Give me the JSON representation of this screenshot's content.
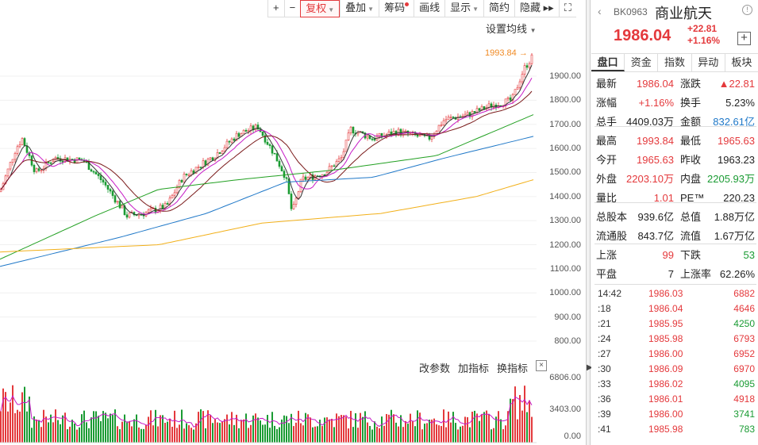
{
  "toolbar": [
    {
      "label": "+",
      "name": "zoom-in-button"
    },
    {
      "label": "−",
      "name": "zoom-out-button"
    },
    {
      "label": "复权",
      "name": "adjust-button",
      "caret": true,
      "active": true
    },
    {
      "label": "叠加",
      "name": "overlay-button",
      "caret": true
    },
    {
      "label": "筹码",
      "name": "chips-button",
      "dot": true
    },
    {
      "label": "画线",
      "name": "draw-line-button"
    },
    {
      "label": "显示",
      "name": "display-button",
      "caret": true
    },
    {
      "label": "简约",
      "name": "simple-button"
    },
    {
      "label": "隐藏 ▸▸",
      "name": "hide-button"
    },
    {
      "label": "⛶",
      "name": "fullscreen-button"
    }
  ],
  "settings_ma": "设置均线",
  "peak_label": "1993.84",
  "price_axis": [
    "1900.00",
    "1800.00",
    "1700.00",
    "1600.00",
    "1500.00",
    "1400.00",
    "1300.00",
    "1200.00",
    "1100.00",
    "1000.00",
    "900.00",
    "800.00"
  ],
  "indicator_toolbar": {
    "params": "改参数",
    "add": "加指标",
    "switch": "换指标",
    "close": "×"
  },
  "volume_axis": [
    "6806.00",
    "3403.00",
    "0.00"
  ],
  "colors": {
    "up": "#e4393c",
    "down": "#1a9b33",
    "ma5": "#333333",
    "ma10": "#c61bc6",
    "ma20": "#7a1a1a",
    "ma60": "#22a022",
    "ma120": "#1f78c8",
    "ma250": "#f2b01a"
  },
  "quote": {
    "code": "BK0963",
    "name": "商业航天",
    "price": "1986.04",
    "change": "+22.81",
    "change_pct": "+1.16%",
    "tabs": [
      "盘口",
      "资金",
      "指数",
      "异动",
      "板块"
    ],
    "rows": [
      [
        {
          "k": "最新",
          "v": "1986.04",
          "c": "red"
        },
        {
          "k": "涨跌",
          "v": "▲22.81",
          "c": "red"
        }
      ],
      [
        {
          "k": "涨幅",
          "v": "+1.16%",
          "c": "red"
        },
        {
          "k": "换手",
          "v": "5.23%",
          "c": "dark"
        }
      ],
      [
        {
          "k": "总手",
          "v": "4409.03万",
          "c": "dark"
        },
        {
          "k": "金额",
          "v": "832.61亿",
          "c": "blue"
        }
      ],
      [
        {
          "k": "最高",
          "v": "1993.84",
          "c": "red"
        },
        {
          "k": "最低",
          "v": "1965.63",
          "c": "red"
        }
      ],
      [
        {
          "k": "今开",
          "v": "1965.63",
          "c": "red"
        },
        {
          "k": "昨收",
          "v": "1963.23",
          "c": "dark"
        }
      ],
      [
        {
          "k": "外盘",
          "v": "2203.10万",
          "c": "red"
        },
        {
          "k": "内盘",
          "v": "2205.93万",
          "c": "green"
        }
      ],
      [
        {
          "k": "量比",
          "v": "1.01",
          "c": "red"
        },
        {
          "k": "PE™",
          "v": "220.23",
          "c": "dark"
        }
      ],
      [
        {
          "k": "总股本",
          "v": "939.6亿",
          "c": "dark"
        },
        {
          "k": "总值",
          "v": "1.88万亿",
          "c": "dark"
        }
      ],
      [
        {
          "k": "流通股",
          "v": "843.7亿",
          "c": "dark"
        },
        {
          "k": "流值",
          "v": "1.67万亿",
          "c": "dark"
        }
      ],
      [
        {
          "k": "上涨",
          "v": "99",
          "c": "red"
        },
        {
          "k": "下跌",
          "v": "53",
          "c": "green"
        }
      ],
      [
        {
          "k": "平盘",
          "v": "7",
          "c": "dark"
        },
        {
          "k": "上涨率",
          "v": "62.26%",
          "c": "dark"
        }
      ]
    ],
    "ticks": [
      {
        "t": "14:42",
        "p": "1986.03",
        "v": "6882",
        "c": "red"
      },
      {
        "t": ":18",
        "p": "1986.04",
        "v": "4646",
        "c": "red"
      },
      {
        "t": ":21",
        "p": "1985.95",
        "v": "4250",
        "c": "green"
      },
      {
        "t": ":24",
        "p": "1985.98",
        "v": "6793",
        "c": "red"
      },
      {
        "t": ":27",
        "p": "1986.00",
        "v": "6952",
        "c": "red"
      },
      {
        "t": ":30",
        "p": "1986.09",
        "v": "6970",
        "c": "red"
      },
      {
        "t": ":33",
        "p": "1986.02",
        "v": "4095",
        "c": "green"
      },
      {
        "t": ":36",
        "p": "1986.01",
        "v": "4918",
        "c": "red"
      },
      {
        "t": ":39",
        "p": "1986.00",
        "v": "3741",
        "c": "green"
      },
      {
        "t": ":41",
        "p": "1985.98",
        "v": "783",
        "c": "green"
      }
    ]
  }
}
